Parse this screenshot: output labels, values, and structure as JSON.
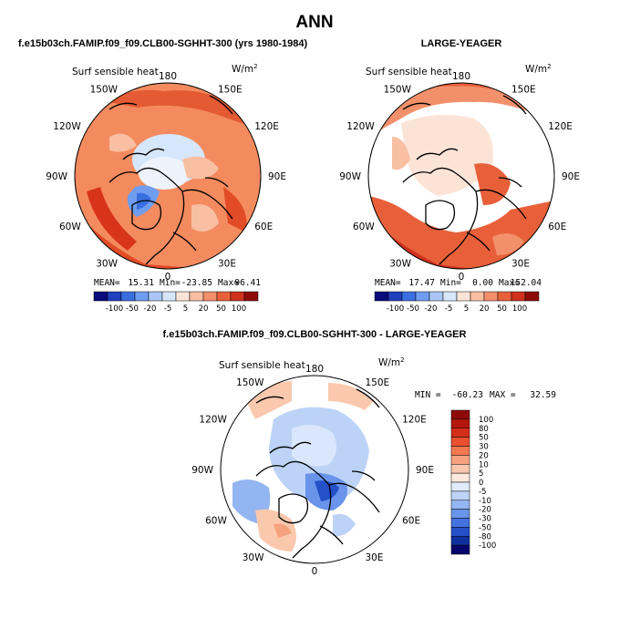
{
  "title": "ANN",
  "chart_data": [
    {
      "type": "heatmap",
      "projection": "north-polar-stereographic",
      "title": "f.e15b03ch.FAMIP.f09_f09.CLB00-SGHHT-300 (yrs 1980-1984)",
      "variable": "Surf sensible heat",
      "units": "W/m",
      "units_exp": "2",
      "longitude_labels": [
        "180",
        "150E",
        "120E",
        "90E",
        "60E",
        "30E",
        "0",
        "30W",
        "60W",
        "90W",
        "120W",
        "150W"
      ],
      "stats": {
        "mean_label": "MEAN=",
        "mean": "15.31",
        "min_label": "Min=",
        "min": "-23.85",
        "max_label": "Max=",
        "max": "96.41"
      },
      "colorbar": {
        "labels": [
          "-100",
          "-50",
          "-20",
          "-5",
          "5",
          "20",
          "50",
          "100"
        ]
      }
    },
    {
      "type": "heatmap",
      "projection": "north-polar-stereographic",
      "title": "LARGE-YEAGER",
      "variable": "Surf sensible heat",
      "units": "W/m",
      "units_exp": "2",
      "longitude_labels": [
        "180",
        "150E",
        "120E",
        "90E",
        "60E",
        "30E",
        "0",
        "30W",
        "60W",
        "90W",
        "120W",
        "150W"
      ],
      "stats": {
        "mean_label": "MEAN=",
        "mean": "17.47",
        "min_label": "Min=",
        "min": "0.00",
        "max_label": "Max=",
        "max": "152.04"
      },
      "colorbar": {
        "labels": [
          "-100",
          "-50",
          "-20",
          "-5",
          "5",
          "20",
          "50",
          "100"
        ]
      }
    },
    {
      "type": "heatmap",
      "projection": "north-polar-stereographic",
      "title": "f.e15b03ch.FAMIP.f09_f09.CLB00-SGHHT-300 - LARGE-YEAGER",
      "variable": "Surf sensible heat",
      "units": "W/m",
      "units_exp": "2",
      "longitude_labels": [
        "180",
        "150E",
        "120E",
        "90E",
        "60E",
        "30E",
        "0",
        "30W",
        "60W",
        "90W",
        "120W",
        "150W"
      ],
      "stats": {
        "min_label": "MIN =",
        "min": "-60.23",
        "max_label": "MAX =",
        "max": "32.59"
      },
      "colorbar": {
        "labels": [
          "100",
          "80",
          "50",
          "30",
          "20",
          "10",
          "5",
          "0",
          "-5",
          "-10",
          "-20",
          "-30",
          "-50",
          "-80",
          "-100"
        ]
      }
    }
  ],
  "palette": {
    "diverging_12": [
      "#0a0a7a",
      "#1f3fbf",
      "#3a6fe0",
      "#6f9df0",
      "#a9c6f6",
      "#d6e6fb",
      "#fbe4d6",
      "#f8bfa3",
      "#f3906c",
      "#e8603a",
      "#d0321e",
      "#8e0b0b"
    ],
    "diff_16": [
      "#8e0b0b",
      "#b5170f",
      "#d42e1a",
      "#e85030",
      "#f2784f",
      "#f6a27f",
      "#fac8ad",
      "#fde8dc",
      "#e0ecfc",
      "#bcd3f7",
      "#93b5f1",
      "#6a94ea",
      "#4472e0",
      "#2450c8",
      "#1030a0",
      "#05056e"
    ],
    "ocean_white": "#ffffff",
    "land_coast": "#000000"
  }
}
